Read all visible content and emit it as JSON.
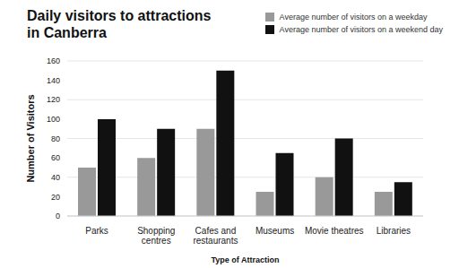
{
  "chart_data": {
    "type": "bar",
    "title": "Daily visitors to attractions in Canberra",
    "x_label": "Type of Attraction",
    "y_label": "Number of Visitors",
    "categories": [
      "Parks",
      "Shopping centres",
      "Cafes and restaurants",
      "Museums",
      "Movie theatres",
      "Libraries"
    ],
    "series": [
      {
        "name": "Average number of visitors on a weekday",
        "color": "#999999",
        "values": [
          50,
          60,
          90,
          25,
          40,
          25
        ]
      },
      {
        "name": "Average number of visitors on a weekend day",
        "color": "#111111",
        "values": [
          100,
          90,
          150,
          65,
          80,
          35
        ]
      }
    ],
    "ylim": [
      0,
      160
    ],
    "yticks": [
      0,
      20,
      40,
      60,
      80,
      100,
      120,
      140,
      160
    ],
    "grid": true,
    "legend": "upper right"
  }
}
